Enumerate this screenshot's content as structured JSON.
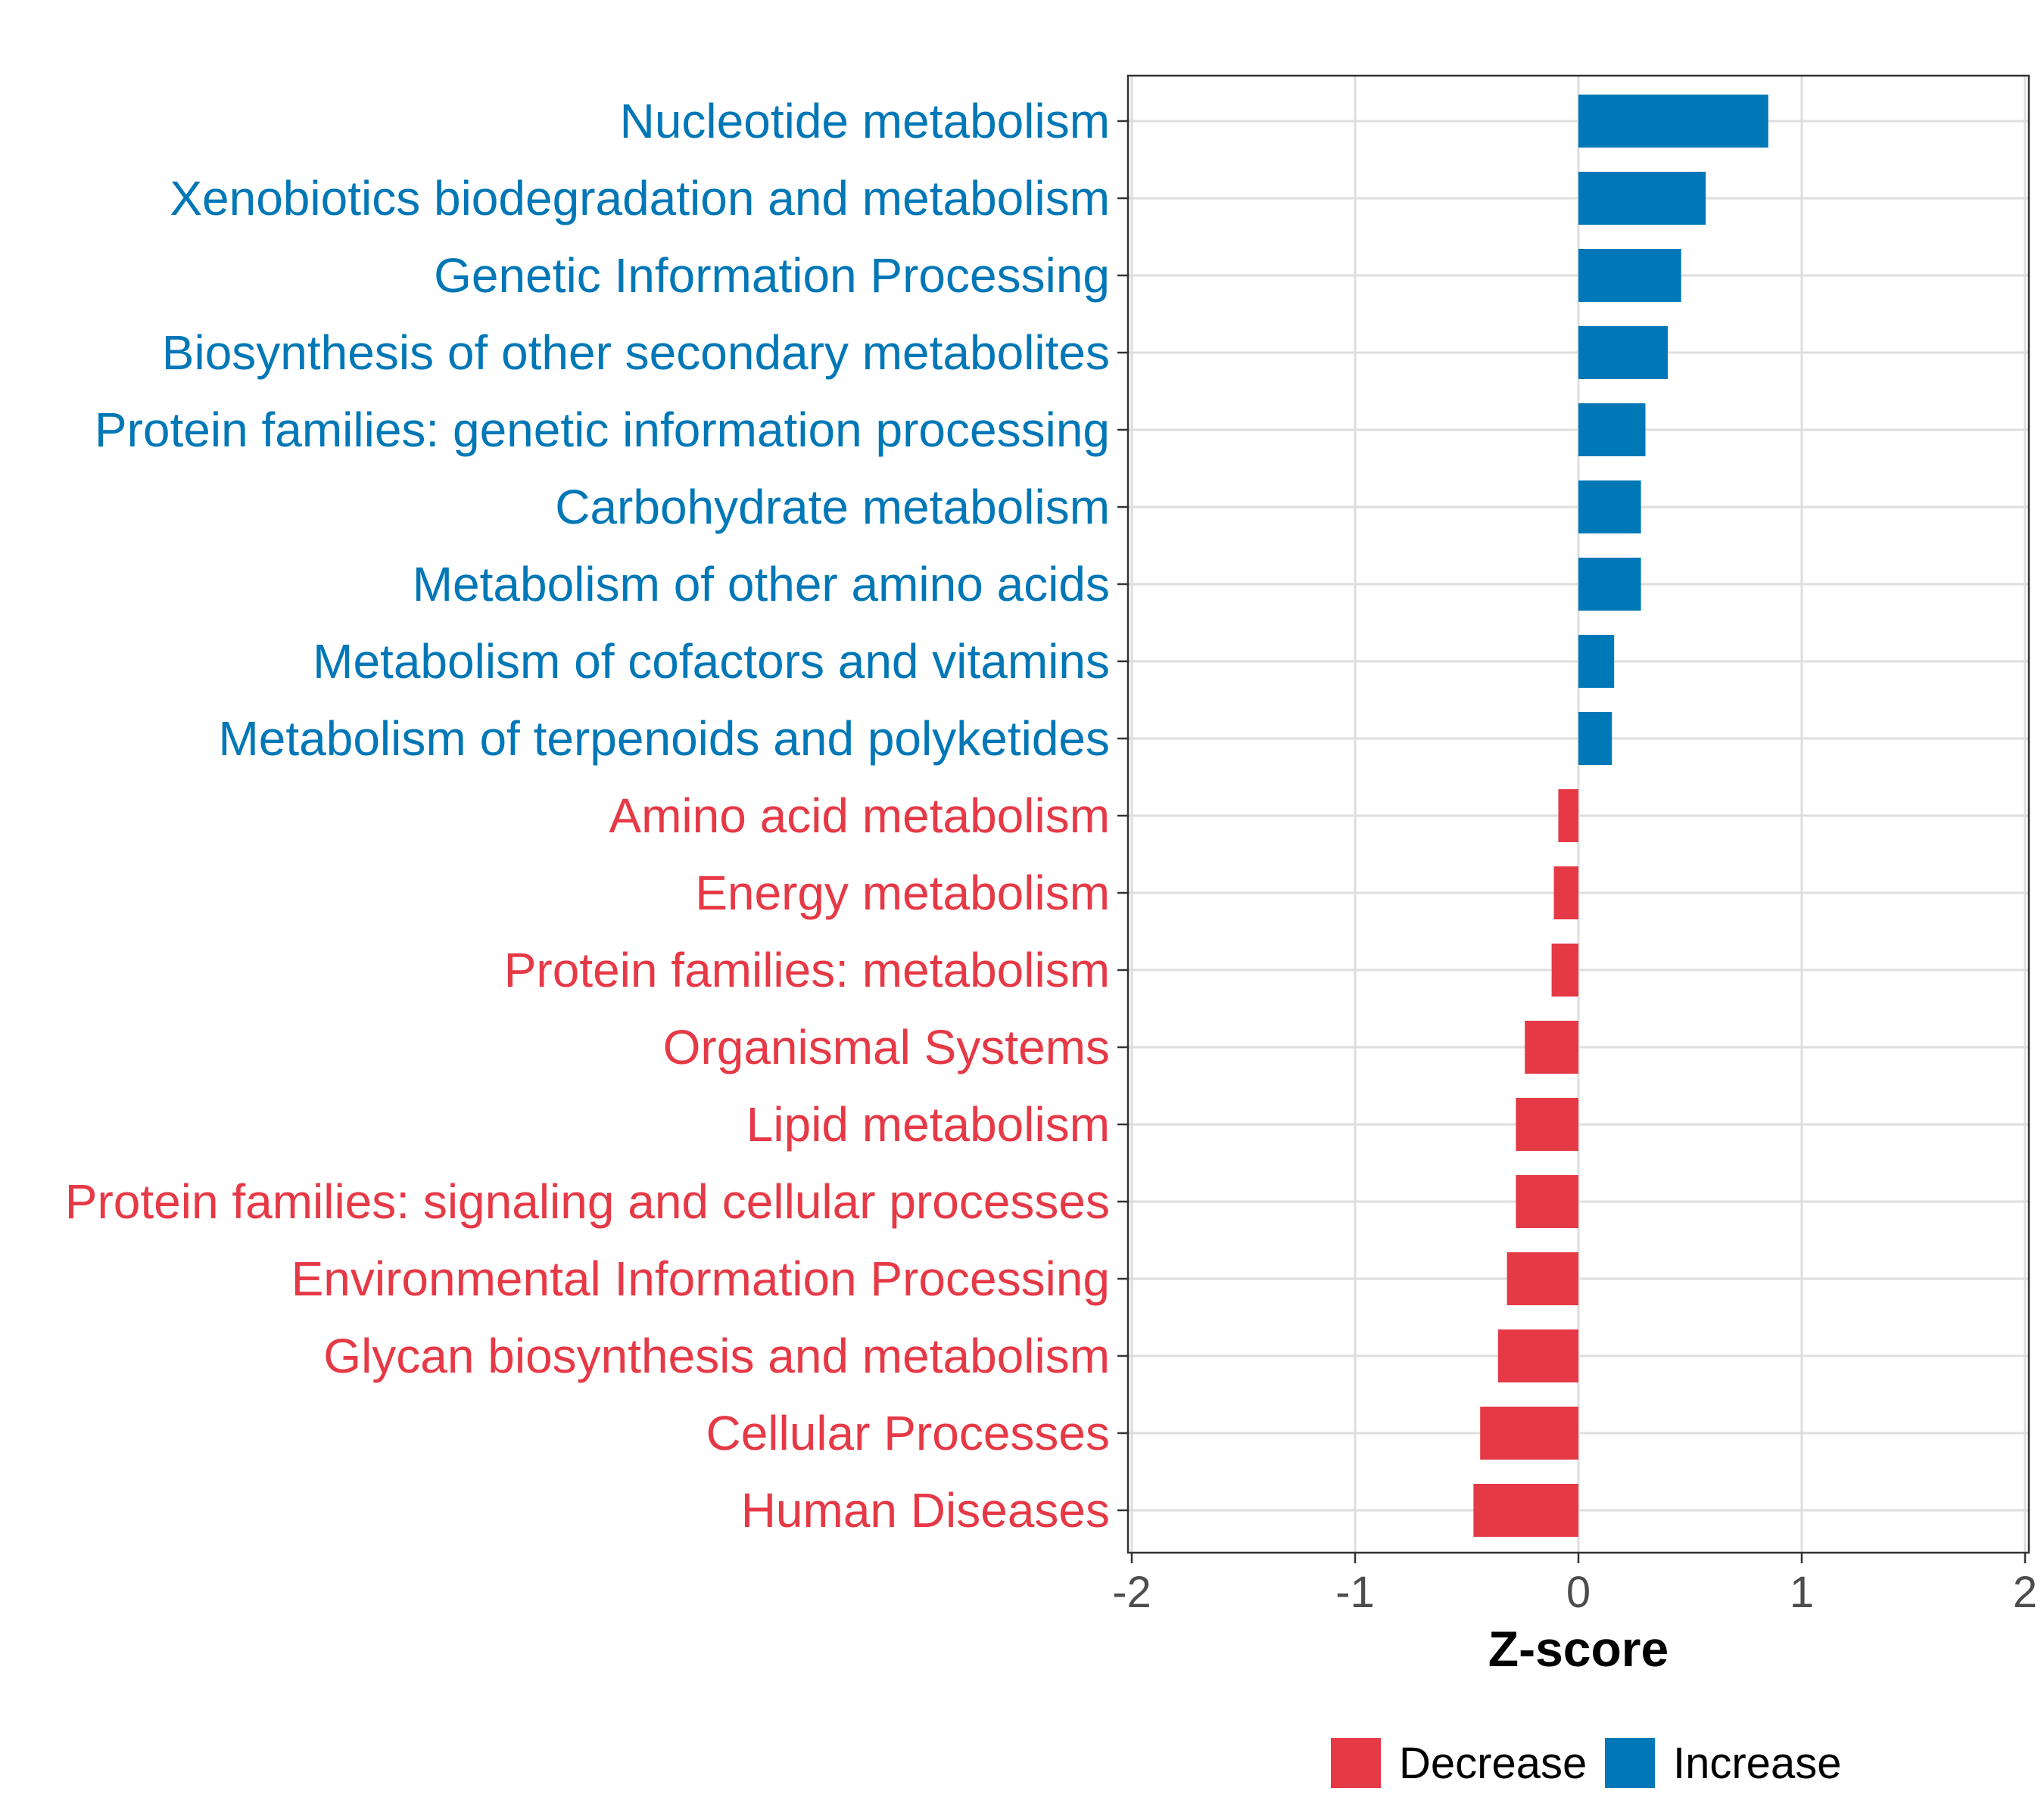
{
  "chart_data": {
    "type": "bar",
    "orientation": "horizontal",
    "title": "",
    "xlabel": "Z-score",
    "ylabel": "",
    "xlim": [
      -2,
      2
    ],
    "xticks": [
      "-2",
      "-1",
      "0",
      "1",
      "2"
    ],
    "xtick_values": [
      -2,
      -1,
      0,
      1,
      2
    ],
    "grid": true,
    "legend_position": "bottom",
    "colors": {
      "Decrease": "#e63946",
      "Increase": "#0077b6"
    },
    "categories": [
      "Nucleotide metabolism",
      "Xenobiotics biodegradation and metabolism",
      "Genetic Information Processing",
      "Biosynthesis of other secondary metabolites",
      "Protein families: genetic information processing",
      "Carbohydrate metabolism",
      "Metabolism of other amino acids",
      "Metabolism of cofactors and vitamins",
      "Metabolism of terpenoids and polyketides",
      "Amino acid metabolism",
      "Energy metabolism",
      "Protein families: metabolism",
      "Organismal Systems",
      "Lipid metabolism",
      "Protein families: signaling and cellular processes",
      "Environmental Information Processing",
      "Glycan biosynthesis and metabolism",
      "Cellular Processes",
      "Human Diseases"
    ],
    "values": [
      0.85,
      0.57,
      0.46,
      0.4,
      0.3,
      0.28,
      0.28,
      0.16,
      0.15,
      -0.09,
      -0.11,
      -0.12,
      -0.24,
      -0.28,
      -0.28,
      -0.32,
      -0.36,
      -0.44,
      -0.47
    ],
    "groups": [
      "Increase",
      "Increase",
      "Increase",
      "Increase",
      "Increase",
      "Increase",
      "Increase",
      "Increase",
      "Increase",
      "Decrease",
      "Decrease",
      "Decrease",
      "Decrease",
      "Decrease",
      "Decrease",
      "Decrease",
      "Decrease",
      "Decrease",
      "Decrease"
    ],
    "legend": [
      "Decrease",
      "Increase"
    ]
  }
}
